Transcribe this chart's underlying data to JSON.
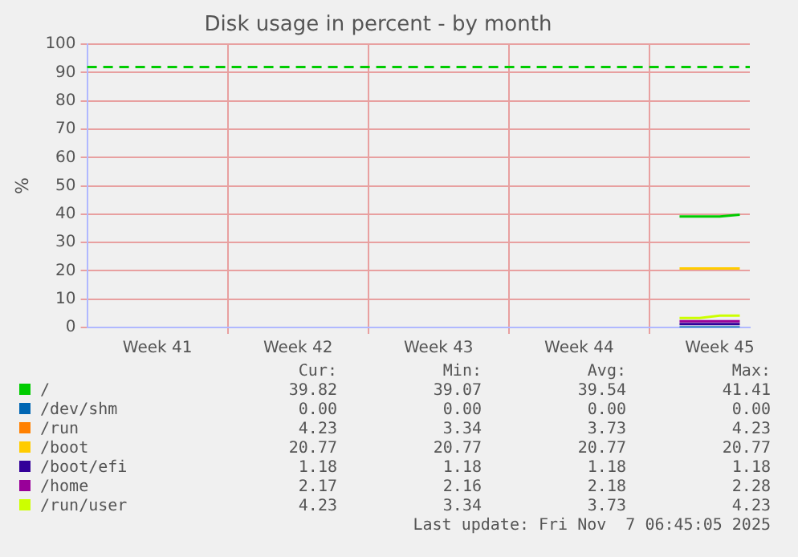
{
  "chart_data": {
    "type": "line",
    "title": "Disk usage in percent - by month",
    "ylabel": "%",
    "categories": [
      null,
      null,
      null,
      "Week 41",
      null,
      null,
      null,
      null,
      null,
      null,
      "Week 42",
      null,
      null,
      null,
      null,
      null,
      null,
      "Week 43",
      null,
      null,
      null,
      null,
      null,
      null,
      "Week 44",
      null,
      null,
      null,
      null,
      null,
      null,
      "Week 45",
      null
    ],
    "ylim": [
      0,
      100
    ],
    "yticks": [
      0,
      10,
      20,
      30,
      40,
      50,
      60,
      70,
      80,
      90,
      100
    ],
    "grid": true,
    "legend": "bottom",
    "marker": "none",
    "line_style": "solid",
    "ref_lines": [
      {
        "axis": "y",
        "value": 92,
        "color": "#00cc00",
        "line_style": "dashed"
      }
    ],
    "series": [
      {
        "name": "/",
        "color": "#00cc00",
        "values": [
          null,
          null,
          null,
          null,
          null,
          null,
          null,
          null,
          null,
          null,
          null,
          null,
          null,
          null,
          null,
          null,
          null,
          null,
          null,
          null,
          null,
          null,
          null,
          null,
          null,
          null,
          null,
          null,
          null,
          39.2,
          39.2,
          39.2,
          39.8
        ]
      },
      {
        "name": "/dev/shm",
        "color": "#0066b3",
        "values": [
          null,
          null,
          null,
          null,
          null,
          null,
          null,
          null,
          null,
          null,
          null,
          null,
          null,
          null,
          null,
          null,
          null,
          null,
          null,
          null,
          null,
          null,
          null,
          null,
          null,
          null,
          null,
          null,
          null,
          0,
          0,
          0,
          0
        ]
      },
      {
        "name": "/run",
        "color": "#ff8000",
        "values": [
          null,
          null,
          null,
          null,
          null,
          null,
          null,
          null,
          null,
          null,
          null,
          null,
          null,
          null,
          null,
          null,
          null,
          null,
          null,
          null,
          null,
          null,
          null,
          null,
          null,
          null,
          null,
          null,
          null,
          null,
          null,
          null,
          null
        ]
      },
      {
        "name": "/boot",
        "color": "#ffcc00",
        "values": [
          null,
          null,
          null,
          null,
          null,
          null,
          null,
          null,
          null,
          null,
          null,
          null,
          null,
          null,
          null,
          null,
          null,
          null,
          null,
          null,
          null,
          null,
          null,
          null,
          null,
          null,
          null,
          null,
          null,
          20.8,
          20.8,
          20.8,
          20.8
        ]
      },
      {
        "name": "/boot/efi",
        "color": "#330099",
        "values": [
          null,
          null,
          null,
          null,
          null,
          null,
          null,
          null,
          null,
          null,
          null,
          null,
          null,
          null,
          null,
          null,
          null,
          null,
          null,
          null,
          null,
          null,
          null,
          null,
          null,
          null,
          null,
          null,
          null,
          1.2,
          1.2,
          1.2,
          1.2
        ]
      },
      {
        "name": "/home",
        "color": "#990099",
        "values": [
          null,
          null,
          null,
          null,
          null,
          null,
          null,
          null,
          null,
          null,
          null,
          null,
          null,
          null,
          null,
          null,
          null,
          null,
          null,
          null,
          null,
          null,
          null,
          null,
          null,
          null,
          null,
          null,
          null,
          2.2,
          2.2,
          2.2,
          2.2
        ]
      },
      {
        "name": "/run/user",
        "color": "#ccff00",
        "values": [
          null,
          null,
          null,
          null,
          null,
          null,
          null,
          null,
          null,
          null,
          null,
          null,
          null,
          null,
          null,
          null,
          null,
          null,
          null,
          null,
          null,
          null,
          null,
          null,
          null,
          null,
          null,
          null,
          null,
          3.3,
          3.3,
          4.2,
          4.2
        ]
      }
    ],
    "annotations": [
      "Cur:",
      "Min:",
      "Avg:",
      "Max:",
      "39.82",
      "39.07",
      "39.54",
      "41.41",
      "0.00",
      "0.00",
      "0.00",
      "0.00",
      "4.23",
      "3.34",
      "3.73",
      "4.23",
      "20.77",
      "20.77",
      "20.77",
      "20.77",
      "1.18",
      "1.18",
      "1.18",
      "1.18",
      "2.17",
      "2.16",
      "2.18",
      "2.28",
      "4.23",
      "3.34",
      "3.73",
      "4.23",
      "Last update: Fri Nov  7 06:45:05 2025"
    ]
  }
}
